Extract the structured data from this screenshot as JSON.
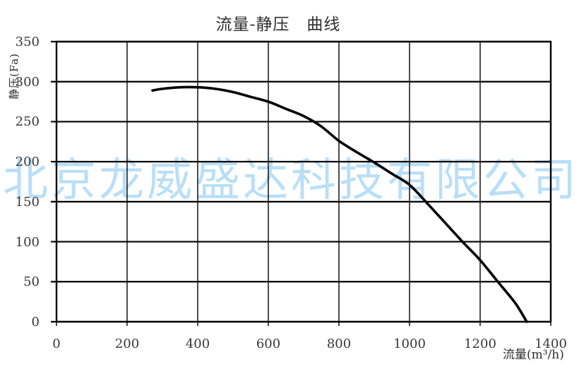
{
  "watermark": {
    "text": "北京龙威盛达科技有限公司",
    "color": "#b9dff8"
  },
  "chart_data": {
    "type": "line",
    "title": "流量-静压　曲线",
    "xlabel": "流量(m³/h)",
    "ylabel": "静压(Fa)",
    "xlim": [
      0,
      1400
    ],
    "ylim": [
      0,
      350
    ],
    "xticks": [
      0,
      200,
      400,
      600,
      800,
      1000,
      1200,
      1400
    ],
    "yticks": [
      0,
      50,
      100,
      150,
      200,
      250,
      300,
      350
    ],
    "grid": true,
    "grid_x_interval": 200,
    "grid_y_interval": 50,
    "legend": "none",
    "series": [
      {
        "points": [
          [
            272,
            289
          ],
          [
            300,
            291
          ],
          [
            350,
            293
          ],
          [
            400,
            293
          ],
          [
            450,
            291
          ],
          [
            500,
            287
          ],
          [
            550,
            281
          ],
          [
            600,
            275
          ],
          [
            650,
            266
          ],
          [
            700,
            257
          ],
          [
            750,
            244
          ],
          [
            800,
            226
          ],
          [
            850,
            212
          ],
          [
            900,
            199
          ],
          [
            950,
            185
          ],
          [
            1000,
            171
          ],
          [
            1050,
            148
          ],
          [
            1100,
            124
          ],
          [
            1150,
            100
          ],
          [
            1200,
            77
          ],
          [
            1250,
            50
          ],
          [
            1300,
            23
          ],
          [
            1332,
            0
          ]
        ],
        "color": "#000000"
      }
    ]
  },
  "colors": {
    "background": "#ffffff",
    "grid_line": "#000000",
    "curve": "#000000",
    "tick_text": "#383838",
    "title_text": "#2e2e2e"
  }
}
